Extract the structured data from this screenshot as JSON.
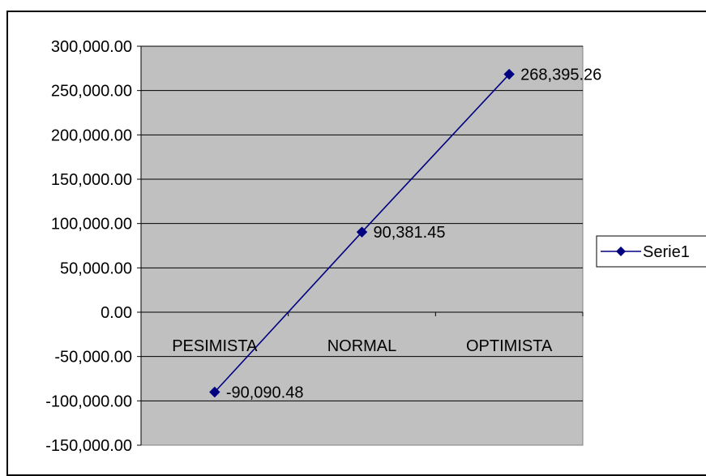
{
  "chart_data": {
    "type": "line",
    "categories": [
      "PESIMISTA",
      "NORMAL",
      "OPTIMISTA"
    ],
    "series": [
      {
        "name": "Serie1",
        "values": [
          -90090.48,
          90381.45,
          268395.26
        ],
        "color": "#000080"
      }
    ],
    "data_labels": [
      "-90,090.48",
      "90,381.45",
      "268,395.26"
    ],
    "y_ticks": [
      "300,000.00",
      "250,000.00",
      "200,000.00",
      "150,000.00",
      "100,000.00",
      "50,000.00",
      "0.00",
      "-50,000.00",
      "-100,000.00",
      "-150,000.00"
    ],
    "ylim": [
      -150000,
      300000
    ],
    "ystep": 50000,
    "grid": true,
    "legend": "right",
    "plot_background": "#c0c0c0",
    "marker": "diamond"
  }
}
